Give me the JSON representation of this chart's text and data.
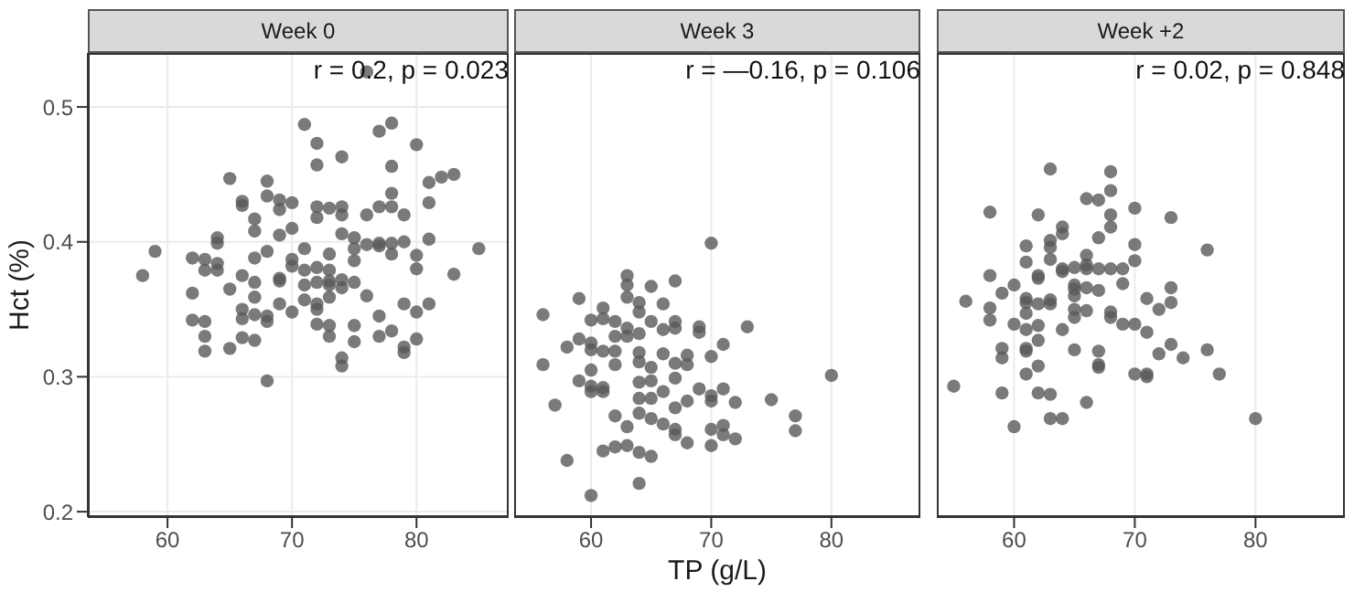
{
  "chart_data": [
    {
      "type": "scatter",
      "title": "Week 0",
      "ylabel": "Hct (%)",
      "annotations": [
        "r = 0.2, p = 0.023"
      ],
      "marker": "circle",
      "grid": true,
      "color": "#595959",
      "xlim": [
        53.6,
        87.4
      ],
      "ylim": [
        0.196,
        0.54
      ],
      "xticks": [
        60,
        70,
        80
      ],
      "yticks": [
        0.2,
        0.3,
        0.4,
        0.5
      ],
      "x": [
        58,
        59,
        62,
        62,
        62,
        63,
        63,
        63,
        63,
        63,
        64,
        64,
        64,
        64,
        65,
        65,
        65,
        66,
        66,
        66,
        66,
        66,
        66,
        67,
        67,
        67,
        67,
        67,
        67,
        67,
        68,
        68,
        68,
        68,
        68,
        68,
        69,
        69,
        69,
        69,
        69,
        69,
        70,
        70,
        70,
        70,
        70,
        71,
        71,
        71,
        71,
        71,
        72,
        72,
        72,
        72,
        72,
        72,
        72,
        72,
        72,
        73,
        73,
        73,
        73,
        73,
        73,
        73,
        73,
        74,
        74,
        74,
        74,
        74,
        74,
        74,
        74,
        75,
        75,
        75,
        75,
        75,
        75,
        76,
        76,
        76,
        76,
        77,
        77,
        77,
        77,
        77,
        77,
        78,
        78,
        78,
        78,
        78,
        78,
        78,
        79,
        79,
        79,
        79,
        79,
        80,
        80,
        80,
        80,
        80,
        81,
        81,
        81,
        81,
        82,
        83,
        83,
        85
      ],
      "values": [
        0.375,
        0.393,
        0.388,
        0.362,
        0.342,
        0.387,
        0.379,
        0.341,
        0.33,
        0.319,
        0.403,
        0.399,
        0.384,
        0.379,
        0.447,
        0.365,
        0.321,
        0.43,
        0.427,
        0.375,
        0.35,
        0.343,
        0.329,
        0.417,
        0.408,
        0.388,
        0.37,
        0.359,
        0.346,
        0.327,
        0.445,
        0.434,
        0.393,
        0.345,
        0.341,
        0.297,
        0.431,
        0.424,
        0.405,
        0.373,
        0.371,
        0.354,
        0.429,
        0.41,
        0.387,
        0.382,
        0.348,
        0.487,
        0.395,
        0.379,
        0.368,
        0.357,
        0.473,
        0.457,
        0.426,
        0.418,
        0.381,
        0.37,
        0.354,
        0.35,
        0.339,
        0.425,
        0.391,
        0.379,
        0.371,
        0.368,
        0.359,
        0.338,
        0.33,
        0.463,
        0.426,
        0.42,
        0.406,
        0.372,
        0.366,
        0.314,
        0.308,
        0.403,
        0.395,
        0.386,
        0.37,
        0.338,
        0.326,
        0.526,
        0.42,
        0.398,
        0.36,
        0.482,
        0.426,
        0.399,
        0.397,
        0.345,
        0.33,
        0.488,
        0.456,
        0.436,
        0.426,
        0.399,
        0.391,
        0.334,
        0.42,
        0.4,
        0.354,
        0.322,
        0.318,
        0.472,
        0.39,
        0.38,
        0.348,
        0.328,
        0.444,
        0.429,
        0.402,
        0.354,
        0.448,
        0.45,
        0.376,
        0.395
      ]
    },
    {
      "type": "scatter",
      "title": "Week 3",
      "xlabel": "TP (g/L)",
      "annotations": [
        "r = —0.16, p = 0.106"
      ],
      "marker": "circle",
      "grid": true,
      "tick_labels": "x",
      "color": "#595959",
      "xlim": [
        53.6,
        87.4
      ],
      "ylim": [
        0.196,
        0.54
      ],
      "xticks": [
        60,
        70,
        80
      ],
      "yticks": [
        0.2,
        0.3,
        0.4,
        0.5
      ],
      "x": [
        56,
        56,
        57,
        58,
        58,
        59,
        59,
        59,
        60,
        60,
        60,
        60,
        60,
        60,
        60,
        61,
        61,
        61,
        61,
        61,
        61,
        62,
        62,
        62,
        62,
        62,
        62,
        63,
        63,
        63,
        63,
        63,
        63,
        63,
        64,
        64,
        64,
        64,
        64,
        64,
        64,
        64,
        64,
        64,
        65,
        65,
        65,
        65,
        65,
        65,
        65,
        66,
        66,
        66,
        66,
        66,
        67,
        67,
        67,
        67,
        67,
        67,
        67,
        67,
        68,
        68,
        68,
        68,
        69,
        69,
        69,
        70,
        70,
        70,
        70,
        70,
        70,
        71,
        71,
        71,
        71,
        72,
        72,
        73,
        75,
        77,
        77,
        80
      ],
      "values": [
        0.346,
        0.309,
        0.279,
        0.322,
        0.238,
        0.358,
        0.328,
        0.297,
        0.342,
        0.325,
        0.32,
        0.305,
        0.293,
        0.289,
        0.212,
        0.351,
        0.343,
        0.319,
        0.292,
        0.289,
        0.245,
        0.341,
        0.33,
        0.319,
        0.309,
        0.271,
        0.248,
        0.375,
        0.368,
        0.359,
        0.336,
        0.33,
        0.263,
        0.249,
        0.355,
        0.348,
        0.332,
        0.318,
        0.311,
        0.296,
        0.284,
        0.273,
        0.244,
        0.221,
        0.367,
        0.341,
        0.307,
        0.297,
        0.284,
        0.269,
        0.241,
        0.354,
        0.335,
        0.317,
        0.289,
        0.265,
        0.371,
        0.341,
        0.336,
        0.31,
        0.299,
        0.277,
        0.261,
        0.257,
        0.316,
        0.309,
        0.282,
        0.251,
        0.337,
        0.333,
        0.291,
        0.399,
        0.315,
        0.286,
        0.282,
        0.261,
        0.249,
        0.324,
        0.291,
        0.264,
        0.257,
        0.281,
        0.254,
        0.337,
        0.283,
        0.271,
        0.26,
        0.301
      ]
    },
    {
      "type": "scatter",
      "title": "Week +2",
      "annotations": [
        "r = 0.02, p = 0.848"
      ],
      "marker": "circle",
      "grid": true,
      "tick_labels": "x",
      "color": "#595959",
      "xlim": [
        53.6,
        87.4
      ],
      "ylim": [
        0.196,
        0.54
      ],
      "xticks": [
        60,
        70,
        80
      ],
      "yticks": [
        0.2,
        0.3,
        0.4,
        0.5
      ],
      "x": [
        55,
        56,
        58,
        58,
        58,
        58,
        59,
        59,
        59,
        59,
        60,
        60,
        60,
        61,
        61,
        61,
        61,
        61,
        61,
        61,
        61,
        61,
        62,
        62,
        62,
        62,
        62,
        62,
        62,
        62,
        63,
        63,
        63,
        63,
        63,
        63,
        63,
        63,
        64,
        64,
        64,
        64,
        64,
        64,
        65,
        65,
        65,
        65,
        65,
        65,
        65,
        66,
        66,
        66,
        66,
        66,
        66,
        66,
        67,
        67,
        67,
        67,
        67,
        67,
        67,
        68,
        68,
        68,
        68,
        68,
        68,
        68,
        69,
        69,
        69,
        70,
        70,
        70,
        70,
        70,
        71,
        71,
        71,
        71,
        72,
        72,
        73,
        73,
        73,
        73,
        74,
        76,
        76,
        77,
        80
      ],
      "values": [
        0.293,
        0.356,
        0.422,
        0.375,
        0.351,
        0.342,
        0.362,
        0.321,
        0.314,
        0.288,
        0.368,
        0.339,
        0.263,
        0.397,
        0.385,
        0.358,
        0.355,
        0.347,
        0.335,
        0.321,
        0.319,
        0.302,
        0.42,
        0.375,
        0.373,
        0.354,
        0.338,
        0.327,
        0.308,
        0.288,
        0.454,
        0.401,
        0.396,
        0.387,
        0.357,
        0.354,
        0.287,
        0.269,
        0.411,
        0.406,
        0.38,
        0.378,
        0.335,
        0.269,
        0.381,
        0.368,
        0.365,
        0.36,
        0.35,
        0.344,
        0.32,
        0.432,
        0.39,
        0.383,
        0.38,
        0.366,
        0.349,
        0.281,
        0.431,
        0.403,
        0.38,
        0.364,
        0.319,
        0.309,
        0.307,
        0.452,
        0.438,
        0.42,
        0.411,
        0.38,
        0.348,
        0.344,
        0.38,
        0.369,
        0.339,
        0.425,
        0.398,
        0.386,
        0.339,
        0.302,
        0.358,
        0.333,
        0.302,
        0.3,
        0.35,
        0.317,
        0.418,
        0.366,
        0.355,
        0.324,
        0.314,
        0.394,
        0.32,
        0.302,
        0.269
      ]
    }
  ]
}
